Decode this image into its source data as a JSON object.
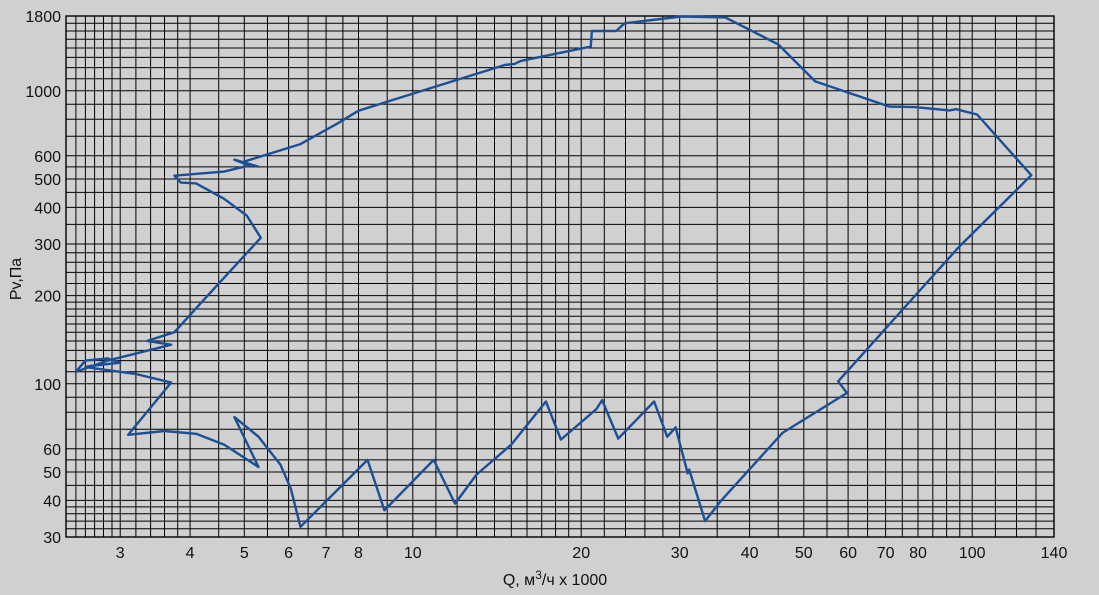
{
  "chart_data": {
    "type": "line",
    "title": "",
    "xlabel": "Q, м3/ч x 1000",
    "xlabel_parts": {
      "base": "Q, м",
      "sup": "3",
      "tail": "/ч x 1000"
    },
    "ylabel": "Pv,Па",
    "x_scale": "log",
    "y_scale": "log",
    "xlim": [
      2.4,
      140
    ],
    "ylim": [
      30,
      1800
    ],
    "grid": true,
    "background": "#d0d0d0",
    "line_color": "#1c4f96",
    "x_ticks": [
      {
        "value": 3,
        "label": "3"
      },
      {
        "value": 4,
        "label": "4"
      },
      {
        "value": 5,
        "label": "5"
      },
      {
        "value": 6,
        "label": "6"
      },
      {
        "value": 7,
        "label": "7"
      },
      {
        "value": 8,
        "label": "8"
      },
      {
        "value": 10,
        "label": "10"
      },
      {
        "value": 20,
        "label": "20"
      },
      {
        "value": 30,
        "label": "30"
      },
      {
        "value": 40,
        "label": "40"
      },
      {
        "value": 50,
        "label": "50"
      },
      {
        "value": 60,
        "label": "60"
      },
      {
        "value": 70,
        "label": "70"
      },
      {
        "value": 80,
        "label": "80"
      },
      {
        "value": 100,
        "label": "100"
      },
      {
        "value": 140,
        "label": "140"
      }
    ],
    "y_ticks": [
      {
        "value": 30,
        "label": "30"
      },
      {
        "value": 40,
        "label": "40"
      },
      {
        "value": 50,
        "label": "50"
      },
      {
        "value": 60,
        "label": "60"
      },
      {
        "value": 100,
        "label": "100"
      },
      {
        "value": 200,
        "label": "200"
      },
      {
        "value": 300,
        "label": "300"
      },
      {
        "value": 400,
        "label": "400"
      },
      {
        "value": 500,
        "label": "500"
      },
      {
        "value": 600,
        "label": "600"
      },
      {
        "value": 1000,
        "label": "1000"
      },
      {
        "value": 1800,
        "label": "1800"
      }
    ],
    "x_grid": [
      2.5,
      2.6,
      2.7,
      2.8,
      2.9,
      3,
      3.2,
      3.4,
      3.6,
      3.8,
      4,
      4.5,
      5,
      5.5,
      6,
      6.5,
      7,
      7.5,
      8,
      9,
      10,
      11,
      12,
      13,
      14,
      15,
      16,
      17,
      18,
      19,
      20,
      22,
      24,
      26,
      28,
      30,
      35,
      40,
      45,
      50,
      55,
      60,
      65,
      70,
      75,
      80,
      85,
      90,
      95,
      100,
      110,
      120,
      130
    ],
    "y_grid": [
      32,
      34,
      36,
      38,
      40,
      45,
      50,
      55,
      60,
      70,
      80,
      90,
      100,
      110,
      120,
      130,
      140,
      150,
      160,
      170,
      180,
      190,
      200,
      220,
      240,
      260,
      280,
      300,
      350,
      400,
      450,
      500,
      550,
      600,
      700,
      800,
      900,
      1000,
      1100,
      1200,
      1300,
      1400,
      1500,
      1600,
      1700
    ],
    "series": [
      {
        "values": [
          [
            2.5,
            110
          ],
          [
            2.6,
            120
          ],
          [
            2.85,
            122
          ],
          [
            3.0,
            118
          ],
          [
            2.65,
            115
          ],
          [
            2.6,
            114
          ],
          [
            3.2,
            108
          ],
          [
            3.7,
            101
          ],
          [
            3.1,
            67
          ],
          [
            3.6,
            69
          ],
          [
            4.1,
            67.5
          ],
          [
            4.6,
            62
          ],
          [
            5.3,
            52
          ],
          [
            4.8,
            77
          ],
          [
            5.3,
            66
          ],
          [
            5.8,
            53
          ],
          [
            6.05,
            44
          ],
          [
            6.3,
            32.5
          ],
          [
            8.3,
            55
          ],
          [
            8.9,
            37
          ],
          [
            10.9,
            55
          ],
          [
            11.9,
            39
          ],
          [
            13.0,
            49
          ],
          [
            15.0,
            62
          ],
          [
            17.3,
            87
          ],
          [
            18.4,
            64.5
          ],
          [
            21.3,
            82
          ],
          [
            21.8,
            88
          ],
          [
            23.3,
            65
          ],
          [
            27.0,
            87
          ],
          [
            28.5,
            66
          ],
          [
            29.5,
            71
          ],
          [
            31.0,
            49.5
          ],
          [
            31.2,
            51
          ],
          [
            33.3,
            34
          ],
          [
            35.6,
            40
          ],
          [
            45.8,
            68
          ],
          [
            59.7,
            93
          ],
          [
            57.6,
            102
          ],
          [
            94.5,
            292
          ],
          [
            127.5,
            515
          ],
          [
            102,
            830
          ],
          [
            93.5,
            865
          ],
          [
            91.1,
            857
          ],
          [
            78.9,
            880
          ],
          [
            71.1,
            883
          ],
          [
            52.4,
            1077
          ],
          [
            45.0,
            1440
          ],
          [
            36.2,
            1780
          ],
          [
            30.2,
            1793
          ],
          [
            23.9,
            1700
          ],
          [
            23.1,
            1600
          ],
          [
            20.9,
            1600
          ],
          [
            20.8,
            1415
          ],
          [
            15.6,
            1265
          ],
          [
            15.2,
            1235
          ],
          [
            14.6,
            1225
          ],
          [
            8.0,
            855
          ],
          [
            7.35,
            775
          ],
          [
            6.3,
            658
          ],
          [
            4.95,
            570
          ],
          [
            5.3,
            551
          ],
          [
            4.8,
            582
          ],
          [
            5.1,
            556
          ],
          [
            4.6,
            530
          ],
          [
            3.75,
            513
          ],
          [
            3.85,
            486
          ],
          [
            4.1,
            483
          ],
          [
            4.6,
            428
          ],
          [
            5.05,
            375
          ],
          [
            5.35,
            315
          ],
          [
            4.3,
            200
          ],
          [
            3.75,
            150
          ],
          [
            3.35,
            140
          ],
          [
            3.7,
            136
          ],
          [
            2.85,
            120
          ],
          [
            2.5,
            110
          ]
        ]
      }
    ]
  }
}
